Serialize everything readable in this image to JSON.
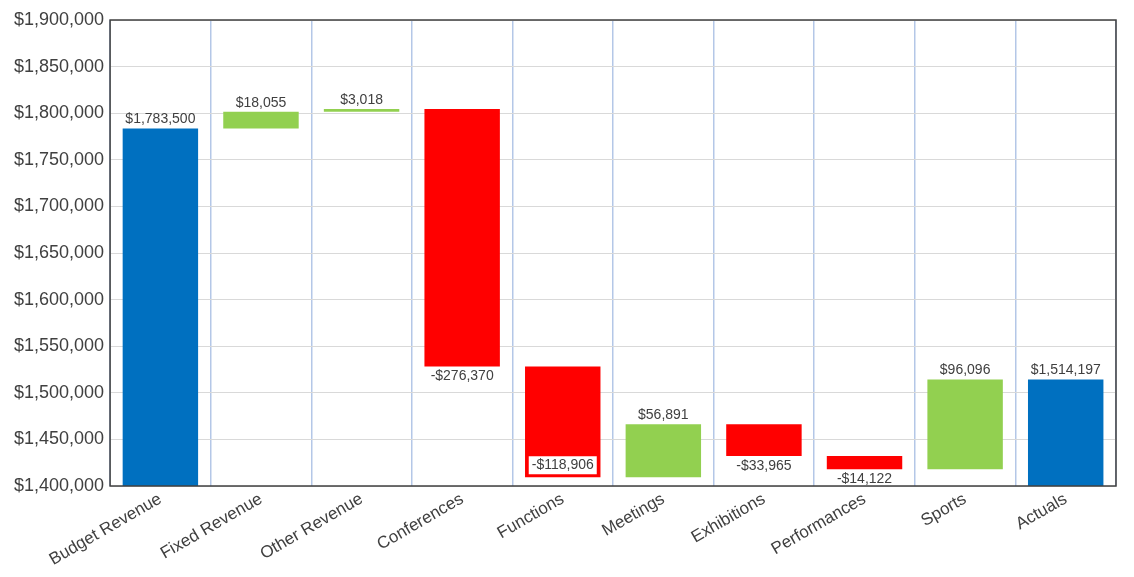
{
  "chart_data": {
    "type": "bar",
    "categories": [
      "Budget Revenue",
      "Fixed Revenue",
      "Other Revenue",
      "Conferences",
      "Functions",
      "Meetings",
      "Exhibitions",
      "Performances",
      "Sports",
      "Actuals"
    ],
    "values": [
      1783500,
      18055,
      3018,
      -276370,
      -118906,
      56891,
      -33965,
      -14122,
      96096,
      1514197
    ],
    "base": [
      null,
      1783500,
      1801555,
      1804573,
      1528203,
      1409297,
      1466188,
      1432223,
      1418101,
      null
    ],
    "colors": [
      "#0070c0",
      "#92d050",
      "#92d050",
      "#ff0000",
      "#ff0000",
      "#92d050",
      "#ff0000",
      "#ff0000",
      "#92d050",
      "#0070c0"
    ],
    "value_labels": [
      "$1,783,500",
      "$18,055",
      "$3,018",
      "-$276,370",
      "-$118,906",
      "$56,891",
      "-$33,965",
      "-$14,122",
      "$96,096",
      "$1,514,197"
    ],
    "ylim": [
      1400000,
      1900000
    ],
    "yticks": [
      {
        "value": 1400000,
        "label": "$1,400,000"
      },
      {
        "value": 1450000,
        "label": "$1,450,000"
      },
      {
        "value": 1500000,
        "label": "$1,500,000"
      },
      {
        "value": 1550000,
        "label": "$1,550,000"
      },
      {
        "value": 1600000,
        "label": "$1,600,000"
      },
      {
        "value": 1650000,
        "label": "$1,650,000"
      },
      {
        "value": 1700000,
        "label": "$1,700,000"
      },
      {
        "value": 1750000,
        "label": "$1,750,000"
      },
      {
        "value": 1800000,
        "label": "$1,800,000"
      },
      {
        "value": 1850000,
        "label": "$1,850,000"
      },
      {
        "value": 1900000,
        "label": "$1,900,000"
      }
    ],
    "grid": true
  }
}
